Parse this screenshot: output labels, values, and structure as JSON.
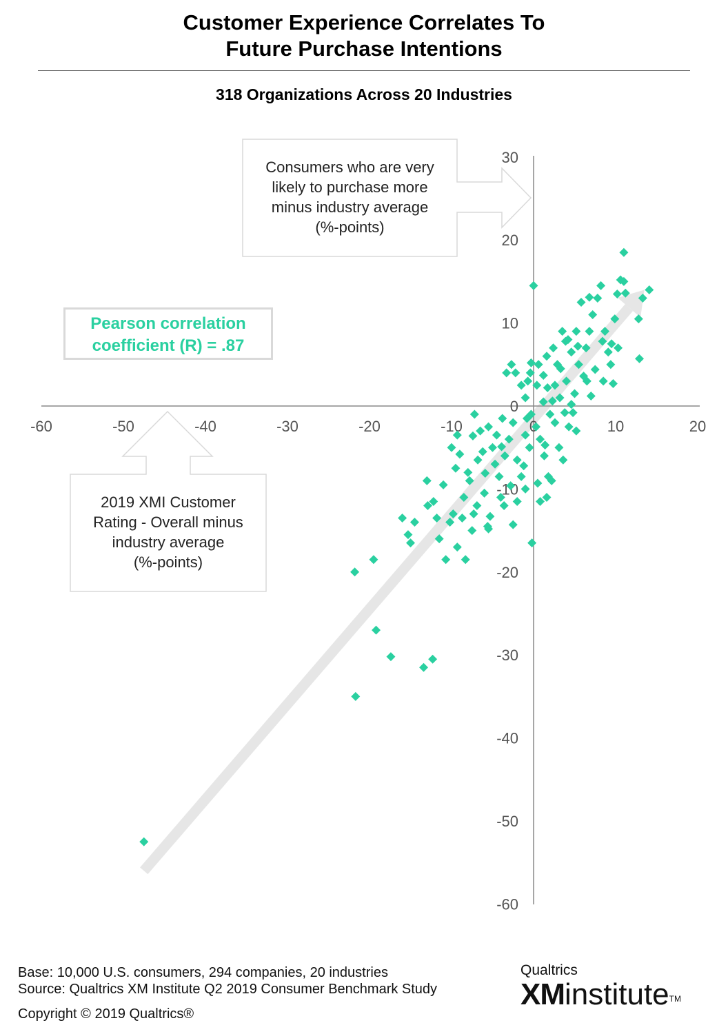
{
  "header": {
    "title_line1": "Customer Experience Correlates To",
    "title_line2": "Future Purchase Intentions",
    "subtitle": "318 Organizations Across 20 Industries"
  },
  "callouts": {
    "y_axis_lines": [
      "Consumers who are very",
      "likely to purchase more",
      "minus industry average",
      "(%-points)"
    ],
    "x_axis_lines": [
      "2019 XMI Customer",
      "Rating - Overall minus",
      "industry average",
      "(%-points)"
    ],
    "correlation_lines": [
      "Pearson correlation",
      "coefficient (R) = .87"
    ]
  },
  "footer": {
    "base": "Base: 10,000 U.S. consumers, 294 companies, 20 industries",
    "source": "Source: Qualtrics XM Institute Q2 2019 Consumer Benchmark Study",
    "copyright": "Copyright © 2019 Qualtrics®"
  },
  "logo": {
    "top": "Qualtrics",
    "xm": "XM",
    "institute": "institute",
    "tm": "TM"
  },
  "colors": {
    "points": "#2ad0a0",
    "trend": "#e6e6e6",
    "axis": "#888888",
    "callout_border": "#d9d9d9"
  },
  "chart_data": {
    "type": "scatter",
    "title": "Customer Experience Correlates To Future Purchase Intentions",
    "subtitle": "318 Organizations Across 20 Industries",
    "xlabel": "2019 XMI Customer Rating - Overall minus industry average (%-points)",
    "ylabel": "Consumers who are very likely to purchase more minus industry average (%-points)",
    "xlim": [
      -60,
      20
    ],
    "ylim": [
      -60,
      30
    ],
    "x_ticks": [
      -60,
      -50,
      -40,
      -30,
      -20,
      -10,
      0,
      10,
      20
    ],
    "y_ticks": [
      30,
      20,
      10,
      0,
      -10,
      -20,
      -30,
      -40,
      -50,
      -60
    ],
    "grid": false,
    "annotation": "Pearson correlation coefficient (R) = .87",
    "trend_line": {
      "from": [
        -47.5,
        -56
      ],
      "to": [
        13.5,
        14
      ]
    },
    "series": [
      {
        "marker": "diamond",
        "points": [
          [
            -47.5,
            -52.5
          ],
          [
            -21.7,
            -35
          ],
          [
            -21.8,
            -20
          ],
          [
            -19.5,
            -18.5
          ],
          [
            -19.2,
            -27
          ],
          [
            -17.4,
            -30.2
          ],
          [
            -13.4,
            -31.5
          ],
          [
            -12.3,
            -30.5
          ],
          [
            -16,
            -13.5
          ],
          [
            -15.3,
            -15.5
          ],
          [
            -15,
            -16.5
          ],
          [
            -14.5,
            -14
          ],
          [
            -12.9,
            -12
          ],
          [
            -12.2,
            -11.5
          ],
          [
            -11.8,
            -13.5
          ],
          [
            -11.5,
            -16
          ],
          [
            -10.7,
            -18.5
          ],
          [
            -10.2,
            -14
          ],
          [
            -9.8,
            -13
          ],
          [
            -9.3,
            -17
          ],
          [
            -8.3,
            -18.5
          ],
          [
            -8.7,
            -13.5
          ],
          [
            -7.5,
            -15
          ],
          [
            -7.3,
            -13
          ],
          [
            -6.9,
            -12
          ],
          [
            -5.6,
            -14.5
          ],
          [
            -5.3,
            -13.3
          ],
          [
            -5.5,
            -14.8
          ],
          [
            -3.6,
            -12
          ],
          [
            -2.5,
            -14.3
          ],
          [
            -0.2,
            -16.5
          ],
          [
            -1,
            -10
          ],
          [
            -2,
            -11.5
          ],
          [
            -4,
            -11
          ],
          [
            -6,
            -10.5
          ],
          [
            -8,
            -8
          ],
          [
            -9.5,
            -7.5
          ],
          [
            -9.3,
            -3.5
          ],
          [
            -10,
            -5
          ],
          [
            -7.2,
            -1
          ],
          [
            -6.5,
            -3
          ],
          [
            -5.5,
            -2.5
          ],
          [
            -5,
            -5
          ],
          [
            -4.7,
            -7
          ],
          [
            -4.2,
            -8.5
          ],
          [
            -3.5,
            -6
          ],
          [
            -3,
            -4
          ],
          [
            -2.5,
            -2
          ],
          [
            -2,
            -6.5
          ],
          [
            -1.5,
            -8.5
          ],
          [
            -1,
            -3.5
          ],
          [
            -0.5,
            -5
          ],
          [
            -0.3,
            -1
          ],
          [
            0.3,
            -2.5
          ],
          [
            0.8,
            -4
          ],
          [
            1.3,
            -6
          ],
          [
            1.8,
            -8.5
          ],
          [
            2.2,
            -9
          ],
          [
            1.6,
            -11
          ],
          [
            0.8,
            -11.5
          ],
          [
            2.6,
            -2
          ],
          [
            3.1,
            -5
          ],
          [
            3.6,
            -6.5
          ],
          [
            4.3,
            -2.5
          ],
          [
            4.8,
            -0.8
          ],
          [
            5.2,
            -3
          ],
          [
            3.8,
            -0.8
          ],
          [
            2.3,
            0.6
          ],
          [
            1.7,
            2.2
          ],
          [
            1.2,
            3.7
          ],
          [
            0.4,
            2.5
          ],
          [
            -0.4,
            4
          ],
          [
            -1,
            1
          ],
          [
            -1.5,
            2.5
          ],
          [
            -2.2,
            4
          ],
          [
            -2.7,
            5
          ],
          [
            -3.3,
            4
          ],
          [
            -0.3,
            5.2
          ],
          [
            0.6,
            5
          ],
          [
            1.6,
            6
          ],
          [
            2.4,
            7
          ],
          [
            2.9,
            5
          ],
          [
            3.5,
            9
          ],
          [
            4.2,
            8
          ],
          [
            4.6,
            6.5
          ],
          [
            5.2,
            9
          ],
          [
            5.5,
            5
          ],
          [
            5.8,
            12.5
          ],
          [
            6.4,
            7
          ],
          [
            6.8,
            9
          ],
          [
            7.2,
            11
          ],
          [
            7.8,
            13
          ],
          [
            8.2,
            14.5
          ],
          [
            8.7,
            9
          ],
          [
            9.1,
            6.5
          ],
          [
            9.4,
            5
          ],
          [
            9.7,
            2.7
          ],
          [
            8.5,
            3
          ],
          [
            7,
            1.2
          ],
          [
            6.5,
            3
          ],
          [
            5,
            1.5
          ],
          [
            4,
            3
          ],
          [
            3.2,
            1
          ],
          [
            2.6,
            2.5
          ],
          [
            10.2,
            13.5
          ],
          [
            10.6,
            15.2
          ],
          [
            11,
            18.5
          ],
          [
            11.2,
            13.6
          ],
          [
            12.8,
            10.5
          ],
          [
            12.9,
            5.7
          ],
          [
            13.3,
            13
          ],
          [
            14.1,
            14
          ],
          [
            10.3,
            7
          ],
          [
            11,
            15
          ],
          [
            9.5,
            7.5
          ],
          [
            0,
            14.5
          ],
          [
            1.2,
            0.5
          ],
          [
            -0.8,
            -1.5
          ],
          [
            2,
            -1
          ],
          [
            -3.8,
            -1.5
          ],
          [
            -4.5,
            -3.5
          ],
          [
            -6.2,
            -5.5
          ],
          [
            -7.8,
            -9
          ],
          [
            -8.5,
            -11
          ],
          [
            -11,
            -9.5
          ],
          [
            -13,
            -9
          ],
          [
            -6.8,
            -6.5
          ],
          [
            -1.2,
            -7.2
          ],
          [
            0.5,
            -9.3
          ],
          [
            1.4,
            -4.7
          ],
          [
            4.6,
            0.2
          ],
          [
            6.1,
            3.6
          ],
          [
            7.5,
            4.4
          ],
          [
            3.3,
            4.5
          ],
          [
            -0.7,
            3
          ],
          [
            3.9,
            7.8
          ],
          [
            5.4,
            7.2
          ],
          [
            8.4,
            7.8
          ],
          [
            9.9,
            10.5
          ],
          [
            6.8,
            13.1
          ],
          [
            -2.8,
            -9.6
          ],
          [
            -5.9,
            -8.1
          ],
          [
            -7.4,
            -3.6
          ],
          [
            -9,
            -5.8
          ],
          [
            -3.9,
            -4.9
          ]
        ]
      }
    ]
  }
}
